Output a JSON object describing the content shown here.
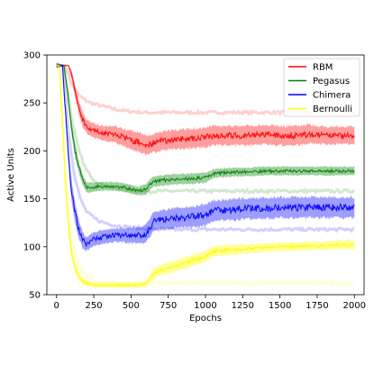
{
  "chart_data": {
    "type": "line",
    "title": "",
    "xlabel": "Epochs",
    "ylabel": "Active Units",
    "xlim": [
      -65,
      2065
    ],
    "ylim": [
      50,
      300
    ],
    "xticks": [
      0,
      250,
      500,
      750,
      1000,
      1250,
      1500,
      1750,
      2000
    ],
    "yticks": [
      50,
      100,
      150,
      200,
      250,
      300
    ],
    "grid": false,
    "legend_position": "top-right",
    "series": [
      {
        "name": "RBM",
        "color": "#ff0000",
        "x": [
          0,
          60,
          80,
          100,
          125,
          150,
          175,
          200,
          250,
          300,
          350,
          400,
          450,
          500,
          550,
          600,
          650,
          700,
          750,
          800,
          900,
          1000,
          1050,
          1100,
          1200,
          1300,
          1400,
          1500,
          1600,
          1700,
          1800,
          1900,
          2000
        ],
        "y": [
          289,
          289,
          289,
          280,
          262,
          245,
          233,
          226,
          221,
          219,
          218,
          217,
          214,
          211,
          209,
          206,
          208,
          210,
          211,
          212,
          213,
          214,
          216,
          216,
          216,
          216,
          217,
          216,
          216,
          217,
          216,
          216,
          216
        ],
        "band": [
          3,
          0,
          0,
          5,
          7,
          8,
          8,
          8,
          8,
          8,
          9,
          9,
          10,
          11,
          11,
          11,
          11,
          11,
          11,
          11,
          11,
          11,
          11,
          11,
          11,
          11,
          11,
          11,
          11,
          11,
          10,
          10,
          10
        ]
      },
      {
        "name": "Pegasus",
        "color": "#008000",
        "x": [
          0,
          50,
          75,
          100,
          125,
          150,
          175,
          200,
          250,
          300,
          350,
          400,
          450,
          500,
          550,
          600,
          650,
          700,
          750,
          800,
          900,
          1000,
          1050,
          1100,
          1200,
          1300,
          1400,
          1500,
          1600,
          1700,
          1800,
          1900,
          2000
        ],
        "y": [
          289,
          289,
          260,
          225,
          200,
          183,
          170,
          162,
          162,
          163,
          163,
          163,
          162,
          160,
          158,
          160,
          168,
          169,
          170,
          170,
          171,
          172,
          176,
          177,
          178,
          178,
          179,
          179,
          179,
          179,
          179,
          179,
          179
        ],
        "band": [
          3,
          0,
          6,
          8,
          8,
          7,
          6,
          6,
          5,
          5,
          5,
          5,
          5,
          5,
          5,
          6,
          6,
          6,
          6,
          6,
          6,
          6,
          5,
          5,
          5,
          5,
          5,
          5,
          5,
          5,
          5,
          5,
          5
        ]
      },
      {
        "name": "Chimera",
        "color": "#0000ff",
        "x": [
          0,
          40,
          60,
          80,
          100,
          125,
          150,
          175,
          200,
          250,
          300,
          350,
          400,
          450,
          500,
          550,
          600,
          650,
          700,
          750,
          800,
          900,
          1000,
          1050,
          1100,
          1200,
          1300,
          1400,
          1500,
          1600,
          1700,
          1800,
          1900,
          2000
        ],
        "y": [
          289,
          289,
          240,
          195,
          160,
          135,
          118,
          107,
          103,
          108,
          110,
          111,
          112,
          112,
          112,
          112,
          113,
          126,
          128,
          129,
          130,
          131,
          133,
          137,
          138,
          139,
          140,
          140,
          141,
          141,
          141,
          141,
          141,
          141
        ],
        "band": [
          3,
          0,
          8,
          10,
          11,
          11,
          10,
          9,
          8,
          8,
          8,
          8,
          8,
          8,
          9,
          9,
          10,
          11,
          11,
          11,
          11,
          12,
          12,
          12,
          12,
          12,
          12,
          12,
          12,
          12,
          12,
          12,
          12,
          12
        ]
      },
      {
        "name": "Bernoulli",
        "color": "#ffff00",
        "x": [
          0,
          20,
          40,
          60,
          80,
          100,
          125,
          150,
          175,
          200,
          250,
          300,
          350,
          400,
          450,
          500,
          550,
          600,
          650,
          700,
          750,
          800,
          900,
          1000,
          1050,
          1100,
          1200,
          1300,
          1400,
          1500,
          1600,
          1700,
          1800,
          1900,
          2000
        ],
        "y": [
          289,
          289,
          230,
          165,
          120,
          95,
          78,
          69,
          64,
          62,
          60,
          60,
          60,
          60,
          60,
          60,
          60,
          61,
          72,
          76,
          78,
          80,
          85,
          90,
          95,
          96,
          97,
          98,
          99,
          100,
          100,
          101,
          101,
          102,
          102
        ],
        "band": [
          3,
          0,
          8,
          10,
          10,
          9,
          7,
          5,
          4,
          3,
          3,
          3,
          3,
          3,
          3,
          3,
          3,
          3,
          6,
          6,
          7,
          7,
          7,
          6,
          6,
          6,
          6,
          5,
          5,
          5,
          5,
          5,
          5,
          5,
          5
        ]
      }
    ],
    "faded_series": [
      {
        "color": "#ff0000",
        "x": [
          0,
          60,
          100,
          150,
          200,
          250,
          300,
          350,
          400,
          500,
          600,
          700,
          800,
          1000,
          1200,
          1400,
          1600,
          1800,
          2000
        ],
        "y": [
          289,
          289,
          270,
          258,
          252,
          249,
          247,
          245,
          243,
          241,
          240,
          240,
          240,
          240,
          240,
          240,
          240,
          240,
          240
        ]
      },
      {
        "color": "#008000",
        "x": [
          0,
          50,
          100,
          150,
          200,
          250,
          300,
          400,
          500,
          600,
          700,
          800,
          1000,
          1200,
          1400,
          1600,
          1800,
          2000
        ],
        "y": [
          289,
          289,
          235,
          200,
          180,
          170,
          165,
          161,
          159,
          158,
          158,
          158,
          158,
          158,
          158,
          158,
          158,
          158
        ]
      },
      {
        "color": "#0000ff",
        "x": [
          0,
          40,
          80,
          120,
          160,
          200,
          250,
          300,
          400,
          500,
          600,
          700,
          800,
          1000,
          1200,
          1400,
          1600,
          1800,
          2000
        ],
        "y": [
          289,
          289,
          220,
          175,
          150,
          137,
          130,
          126,
          122,
          120,
          119,
          118,
          118,
          118,
          118,
          118,
          118,
          118,
          118
        ]
      },
      {
        "color": "#ffff00",
        "x": [
          0,
          20,
          60,
          100,
          150,
          200,
          250,
          300,
          400,
          500,
          600,
          800,
          1000,
          1200,
          1400,
          1600,
          1800,
          2000
        ],
        "y": [
          289,
          289,
          170,
          110,
          80,
          69,
          65,
          63,
          62,
          62,
          62,
          62,
          62,
          62,
          62,
          62,
          62,
          62
        ]
      }
    ]
  }
}
